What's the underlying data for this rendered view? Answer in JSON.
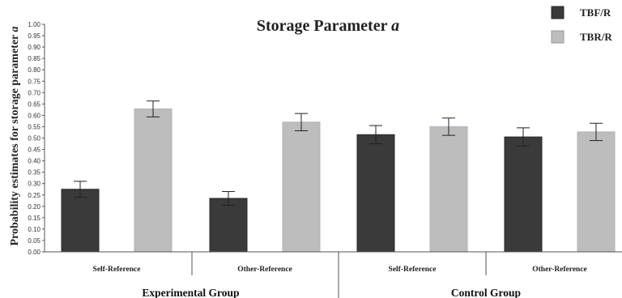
{
  "chart_data": {
    "type": "bar",
    "title": "Storage Parameter a",
    "title_main": "Storage Parameter ",
    "title_param": "a",
    "ylabel": "Probability estimates for storage parameter a",
    "ylabel_main": "Probability estimates for storage parameter ",
    "ylabel_param": "a",
    "ylim": [
      0,
      1.0
    ],
    "yticks": [
      "0.00",
      "0.05",
      "0.10",
      "0.15",
      "0.20",
      "0.25",
      "0.30",
      "0.35",
      "0.40",
      "0.45",
      "0.50",
      "0.55",
      "0.60",
      "0.65",
      "0.70",
      "0.75",
      "0.80",
      "0.85",
      "0.90",
      "0.95",
      "1.00"
    ],
    "grid": false,
    "legend_position": "top-right",
    "categories": [
      "Self-Reference",
      "Other-Reference",
      "Self-Reference",
      "Other-Reference"
    ],
    "groups": [
      {
        "label": "Experimental Group",
        "categories": [
          0,
          1
        ]
      },
      {
        "label": "Control Group",
        "categories": [
          2,
          3
        ]
      }
    ],
    "series": [
      {
        "name": "TBF/R",
        "color": "#3a3a3a",
        "values": [
          0.275,
          0.235,
          0.515,
          0.505
        ],
        "error": [
          0.035,
          0.03,
          0.04,
          0.04
        ]
      },
      {
        "name": "TBR/R",
        "color": "#bdbdbd",
        "values": [
          0.628,
          0.57,
          0.55,
          0.527
        ],
        "error": [
          0.035,
          0.038,
          0.038,
          0.038
        ]
      }
    ]
  }
}
